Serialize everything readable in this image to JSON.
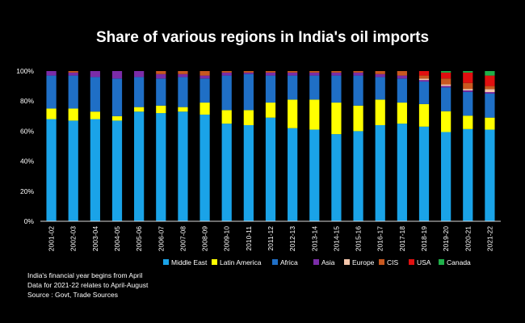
{
  "chart_data": {
    "type": "bar",
    "stacked": true,
    "title": "Share of various regions in India's oil imports",
    "xlabel": "",
    "ylabel": "",
    "ylim": [
      0,
      100
    ],
    "yticks": [
      "0%",
      "20%",
      "40%",
      "60%",
      "80%",
      "100%"
    ],
    "grid": false,
    "legend_position": "bottom",
    "categories": [
      "2001-02",
      "2002-03",
      "2003-04",
      "2004-05",
      "2005-06",
      "2006-07",
      "2007-08",
      "2008-09",
      "2009-10",
      "2010-11",
      "2011-12",
      "2012-13",
      "2013-14",
      "2014-15",
      "2015-16",
      "2016-17",
      "2017-18",
      "2018-19",
      "2019-20",
      "2020-21",
      "2021-22"
    ],
    "series": [
      {
        "name": "Middle East",
        "color": "#1aa3e8",
        "values": [
          68,
          67,
          68,
          67,
          73,
          72,
          73,
          71,
          65,
          64,
          69,
          62,
          61,
          58,
          60,
          64,
          65,
          63,
          60,
          62,
          61
        ]
      },
      {
        "name": "Latin America",
        "color": "#ffff00",
        "values": [
          7,
          8,
          5,
          3,
          3,
          5,
          3,
          8,
          9,
          10,
          10,
          19,
          20,
          21,
          17,
          17,
          14,
          15,
          14,
          9,
          8
        ]
      },
      {
        "name": "Africa",
        "color": "#1f6fc6",
        "values": [
          22,
          22,
          23,
          25,
          20,
          18,
          20,
          16,
          23,
          24,
          18,
          16,
          16,
          18,
          20,
          15,
          16,
          15,
          16,
          16,
          16
        ]
      },
      {
        "name": "Asia",
        "color": "#7b2ca8",
        "values": [
          3,
          2,
          4,
          5,
          4,
          3,
          2,
          2,
          2,
          1,
          2,
          2,
          2,
          2,
          2,
          2,
          2,
          1,
          1,
          1,
          1
        ]
      },
      {
        "name": "Europe",
        "color": "#f5c6ab",
        "values": [
          0,
          0,
          0,
          0,
          0,
          0,
          0,
          0,
          0,
          0,
          0,
          0,
          0,
          0,
          0,
          0,
          0,
          1,
          1,
          1,
          2
        ]
      },
      {
        "name": "CIS",
        "color": "#c8581f",
        "values": [
          0,
          1,
          0,
          0,
          0,
          2,
          2,
          3,
          1,
          1,
          1,
          1,
          1,
          1,
          1,
          2,
          3,
          2,
          4,
          4,
          2
        ]
      },
      {
        "name": "USA",
        "color": "#e01010",
        "values": [
          0,
          0,
          0,
          0,
          0,
          0,
          0,
          0,
          0,
          0,
          0,
          0,
          0,
          0,
          0,
          0,
          0,
          3,
          4,
          7,
          7
        ]
      },
      {
        "name": "Canada",
        "color": "#1fb04a",
        "values": [
          0,
          0,
          0,
          0,
          0,
          0,
          0,
          0,
          0,
          0,
          0,
          0,
          0,
          0,
          0,
          0,
          0,
          0,
          1,
          1,
          3
        ]
      }
    ]
  },
  "notes": {
    "line1": "India's financial year begins from April",
    "line2": "Data for  2021-22 relates to April-August",
    "line3": "Source : Govt, Trade Sources"
  }
}
